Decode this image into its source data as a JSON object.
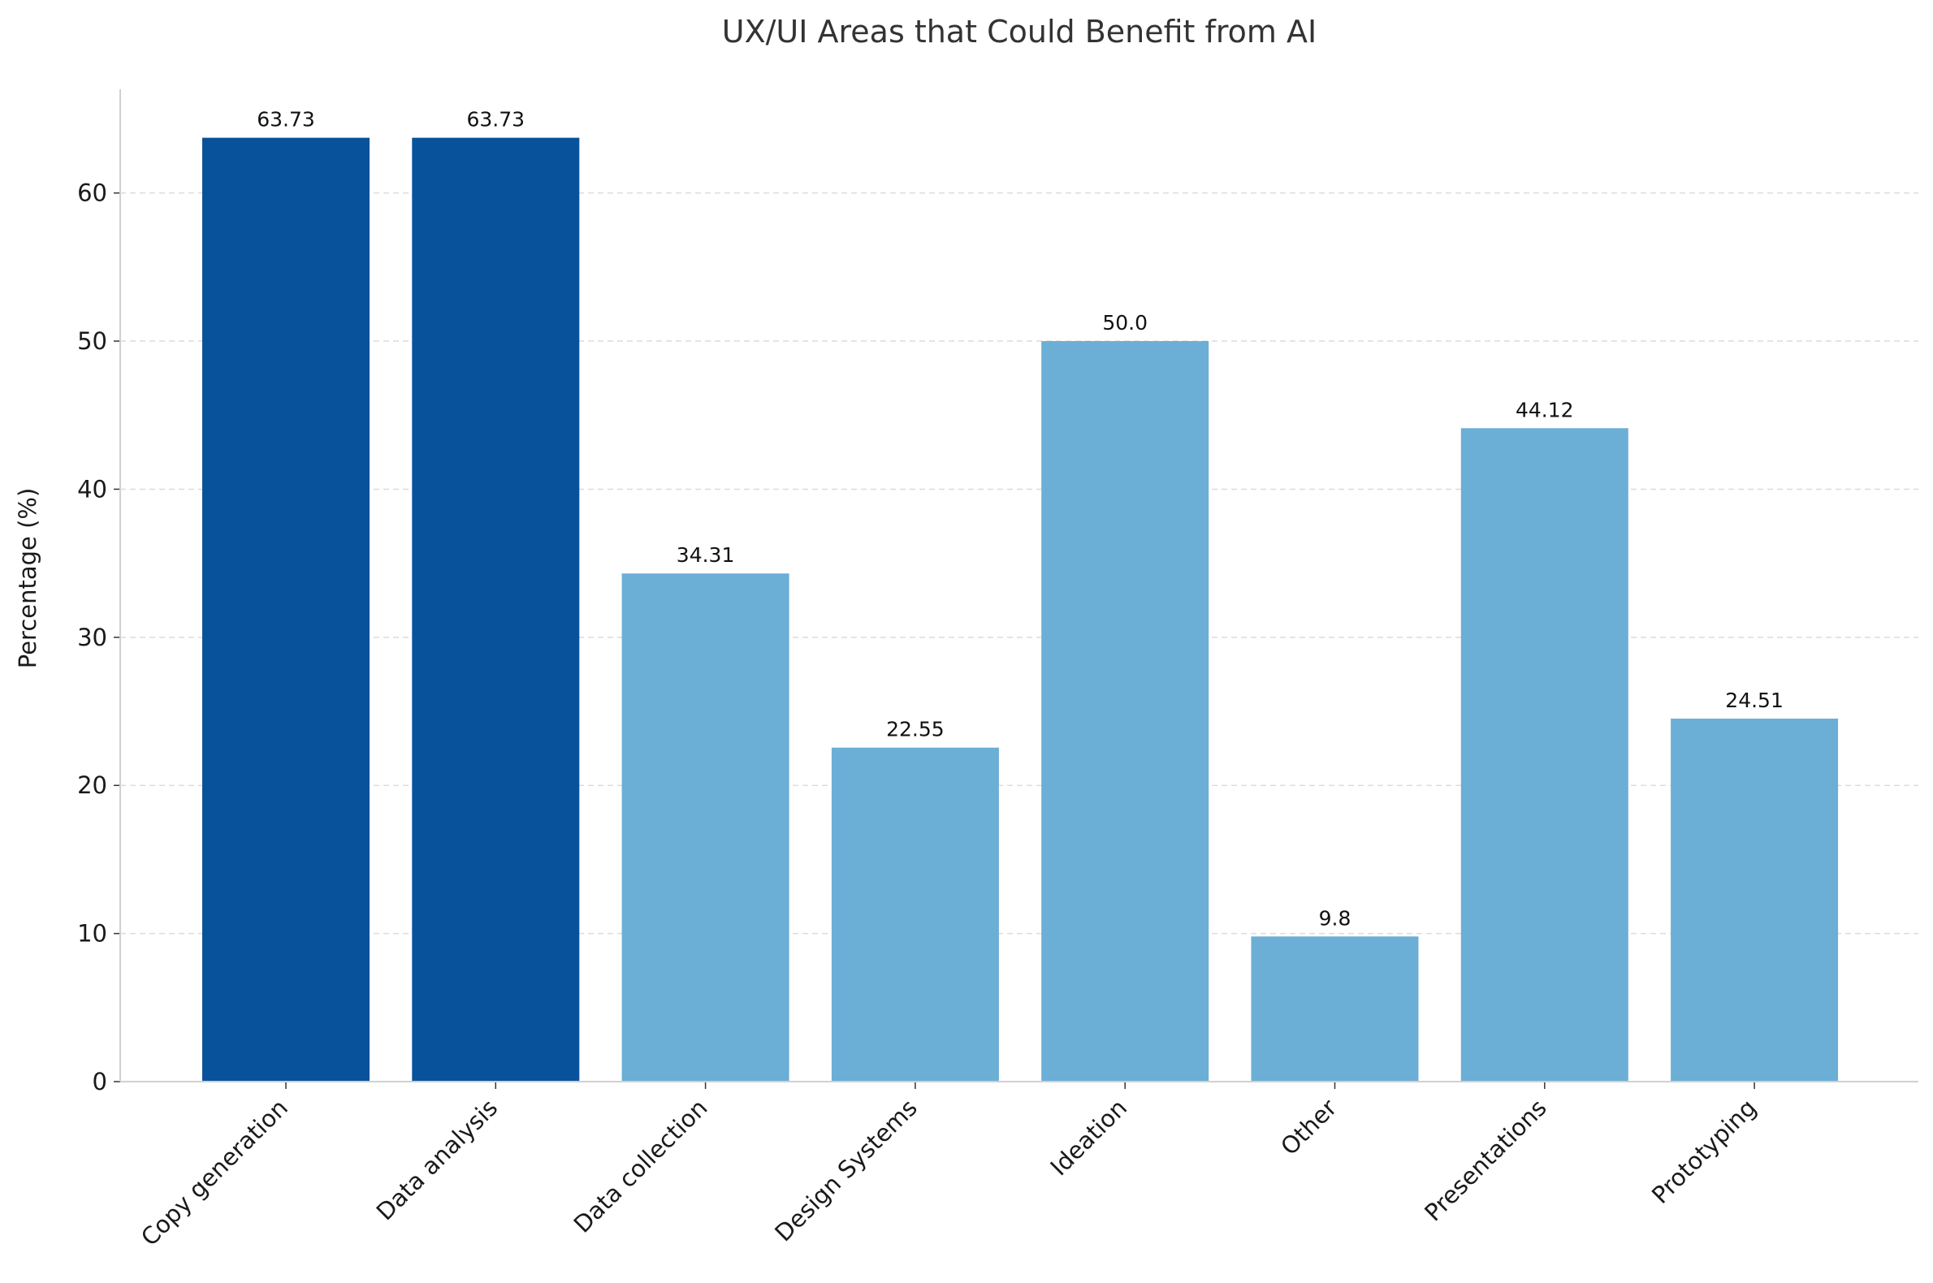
{
  "chart_data": {
    "type": "bar",
    "title": "UX/UI Areas that Could Benefit from AI",
    "xlabel": "",
    "ylabel": "Percentage (%)",
    "categories": [
      "Copy generation",
      "Data analysis",
      "Data collection",
      "Design Systems",
      "Ideation",
      "Other",
      "Presentations",
      "Prototyping"
    ],
    "values": [
      63.73,
      63.73,
      34.31,
      22.55,
      50.0,
      9.8,
      44.12,
      24.51
    ],
    "data_labels": [
      "63.73",
      "63.73",
      "34.31",
      "22.55",
      "50.0",
      "9.8",
      "44.12",
      "24.51"
    ],
    "highlighted": [
      true,
      true,
      false,
      false,
      false,
      false,
      false,
      false
    ],
    "yticks": [
      0,
      10,
      20,
      30,
      40,
      50,
      60
    ],
    "ylim": [
      0,
      67
    ],
    "grid": "horizontal dashed",
    "colors": {
      "highlight": "#08529b",
      "default": "#6baed6"
    }
  }
}
